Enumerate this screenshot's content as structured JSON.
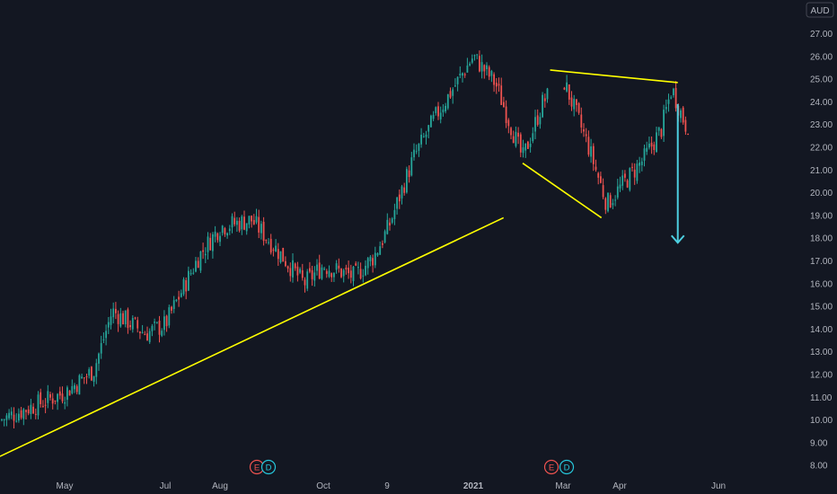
{
  "currency_label": "AUD",
  "colors": {
    "background": "#131722",
    "up": "#26a69a",
    "down": "#ef5350",
    "trendline": "#ffff00",
    "arrow": "#4dd0e1",
    "axis_text": "#b2b5be",
    "earnings": "#ef5350",
    "dividend": "#26c6da"
  },
  "event_markers": [
    {
      "type": "earnings",
      "label": "E"
    },
    {
      "type": "dividend",
      "label": "D"
    },
    {
      "type": "earnings",
      "label": "E"
    },
    {
      "type": "dividend",
      "label": "D"
    }
  ],
  "chart_data": {
    "type": "candlestick",
    "title": "",
    "currency": "AUD",
    "x_tick_labels": [
      "May",
      "Jul",
      "Aug",
      "Oct",
      "9",
      "2021",
      "Mar",
      "Apr",
      "Jun"
    ],
    "y_tick_labels": [
      "27.00",
      "26.00",
      "25.00",
      "24.00",
      "23.00",
      "22.00",
      "21.00",
      "20.00",
      "19.00",
      "18.00",
      "17.00",
      "16.00",
      "15.00",
      "14.00",
      "13.00",
      "12.00",
      "11.00",
      "10.00",
      "9.00",
      "8.00"
    ],
    "ylim": [
      7.6,
      27.6
    ],
    "series": [
      {
        "date": "2020-04",
        "close": 10.0
      },
      {
        "date": "2020-05",
        "close": 11.2
      },
      {
        "date": "2020-05-20",
        "close": 12.2
      },
      {
        "date": "2020-06",
        "close": 14.8
      },
      {
        "date": "2020-06-20",
        "close": 13.8
      },
      {
        "date": "2020-07",
        "close": 14.2
      },
      {
        "date": "2020-07-20",
        "close": 17.2
      },
      {
        "date": "2020-08",
        "close": 18.5
      },
      {
        "date": "2020-08-20",
        "close": 18.8
      },
      {
        "date": "2020-09",
        "close": 17.8
      },
      {
        "date": "2020-09-20",
        "close": 16.0
      },
      {
        "date": "2020-10",
        "close": 16.8
      },
      {
        "date": "2020-10-20",
        "close": 16.3
      },
      {
        "date": "2020-11",
        "close": 17.2
      },
      {
        "date": "2020-11-10",
        "close": 18.5
      },
      {
        "date": "2020-11-25",
        "close": 21.5
      },
      {
        "date": "2020-12-10",
        "close": 23.5
      },
      {
        "date": "2021-01",
        "close": 26.0
      },
      {
        "date": "2021-01-15",
        "close": 24.8
      },
      {
        "date": "2021-02",
        "close": 21.5
      },
      {
        "date": "2021-02-15",
        "close": 24.0
      },
      {
        "date": "2021-03",
        "close": 25.0
      },
      {
        "date": "2021-03-15",
        "close": 22.0
      },
      {
        "date": "2021-03-25",
        "close": 19.5
      },
      {
        "date": "2021-04",
        "close": 20.2
      },
      {
        "date": "2021-04-15",
        "close": 21.5
      },
      {
        "date": "2021-04-25",
        "close": 22.8
      },
      {
        "date": "2021-05",
        "close": 24.6
      },
      {
        "date": "2021-05-10",
        "close": 23.0
      }
    ],
    "annotations": [
      {
        "type": "trendline",
        "from": {
          "date": "2020-04",
          "price": 8.4
        },
        "to": {
          "date": "2021-01-20",
          "price": 18.9
        }
      },
      {
        "type": "trendline",
        "from": {
          "date": "2021-02-20",
          "price": 25.4
        },
        "to": {
          "date": "2021-05-05",
          "price": 24.85
        }
      },
      {
        "type": "trendline",
        "from": {
          "date": "2021-02",
          "price": 21.3
        },
        "to": {
          "date": "2021-03-22",
          "price": 18.9
        }
      },
      {
        "type": "arrow",
        "from": {
          "date": "2021-05-05",
          "price": 23.9
        },
        "to": {
          "date": "2021-05-05",
          "price": 17.8
        }
      }
    ]
  }
}
